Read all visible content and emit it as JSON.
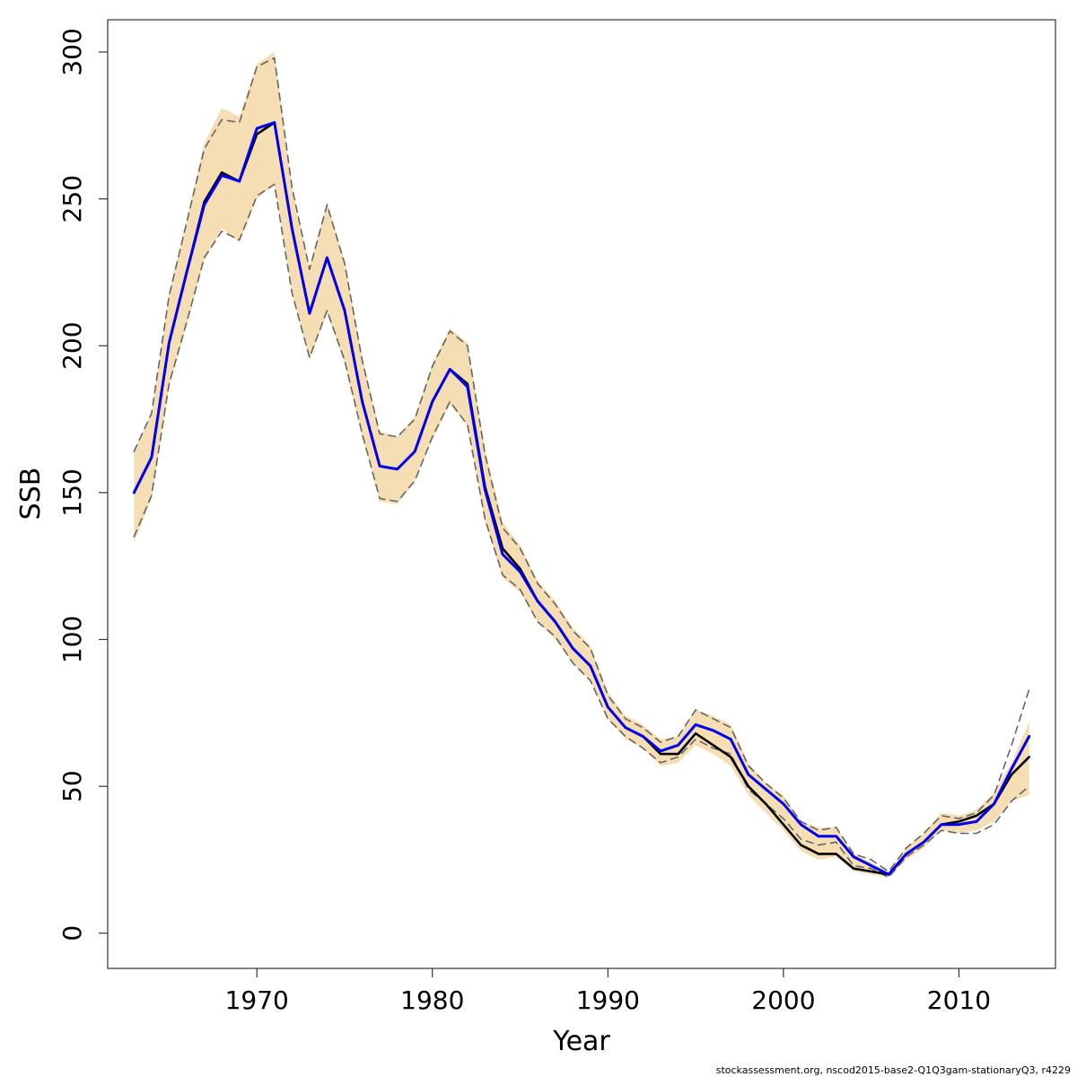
{
  "chart_data": {
    "type": "line",
    "title": "",
    "xlabel": "Year",
    "ylabel": "SSB",
    "xlim": [
      1961.5,
      2015.5
    ],
    "ylim": [
      -12,
      311
    ],
    "x_ticks": [
      1970,
      1980,
      1990,
      2000,
      2010
    ],
    "y_ticks": [
      0,
      50,
      100,
      150,
      200,
      250,
      300
    ],
    "grid": false,
    "legend": "none",
    "x": [
      1963,
      1964,
      1965,
      1966,
      1967,
      1968,
      1969,
      1970,
      1971,
      1972,
      1973,
      1974,
      1975,
      1976,
      1977,
      1978,
      1979,
      1980,
      1981,
      1982,
      1983,
      1984,
      1985,
      1986,
      1987,
      1988,
      1989,
      1990,
      1991,
      1992,
      1993,
      1994,
      1995,
      1996,
      1997,
      1998,
      1999,
      2000,
      2001,
      2002,
      2003,
      2004,
      2005,
      2006,
      2007,
      2008,
      2009,
      2010,
      2011,
      2012,
      2013,
      2014
    ],
    "series": [
      {
        "role": "band",
        "color": "#f5deb3",
        "lower": [
          133,
          148,
          186,
          207,
          229,
          240,
          235,
          250,
          255,
          218,
          195,
          211,
          194,
          169,
          147,
          146,
          154,
          168,
          180,
          173,
          140,
          121,
          116,
          106,
          100,
          92,
          86,
          73,
          66,
          63,
          57,
          58,
          64,
          61,
          57,
          47,
          41,
          35,
          28,
          25,
          26,
          21,
          20,
          19,
          25,
          29,
          35,
          34,
          35,
          38,
          45,
          47
        ],
        "upper": [
          164,
          177,
          218,
          243,
          269,
          281,
          278,
          296,
          300,
          254,
          227,
          249,
          229,
          196,
          171,
          169,
          176,
          194,
          206,
          201,
          165,
          140,
          132,
          120,
          113,
          104,
          98,
          82,
          74,
          71,
          66,
          67,
          76,
          74,
          71,
          58,
          51,
          47,
          38,
          36,
          36,
          27,
          24,
          21,
          29,
          34,
          41,
          40,
          42,
          48,
          58,
          72
        ]
      },
      {
        "role": "upper-dashed",
        "color": "#666666",
        "values": [
          164,
          177,
          217,
          242,
          267,
          277,
          276,
          295,
          298,
          254,
          226,
          248,
          228,
          195,
          170,
          169,
          175,
          193,
          205,
          200,
          163,
          138,
          131,
          119,
          112,
          103,
          97,
          81,
          73,
          70,
          65,
          67,
          76,
          73,
          70,
          57,
          51,
          46,
          38,
          35,
          36,
          27,
          25,
          21,
          29,
          34,
          40,
          39,
          41,
          47,
          64,
          83
        ]
      },
      {
        "role": "lower-dashed",
        "color": "#666666",
        "values": [
          135,
          149,
          187,
          208,
          230,
          239,
          236,
          251,
          255,
          218,
          196,
          212,
          195,
          170,
          148,
          147,
          154,
          169,
          181,
          173,
          141,
          122,
          117,
          106,
          101,
          92,
          86,
          73,
          67,
          63,
          58,
          60,
          66,
          63,
          61,
          49,
          44,
          39,
          32,
          30,
          31,
          23,
          22,
          19,
          26,
          30,
          35,
          34,
          34,
          37,
          45,
          50
        ]
      },
      {
        "role": "black-line",
        "color": "#000000",
        "values": [
          150,
          162,
          201,
          225,
          249,
          259,
          256,
          272,
          276,
          240,
          211,
          230,
          212,
          181,
          159,
          158,
          164,
          181,
          192,
          187,
          152,
          131,
          124,
          113,
          106,
          97,
          91,
          77,
          70,
          67,
          61,
          61,
          68,
          64,
          60,
          50,
          44,
          37,
          30,
          27,
          27,
          22,
          21,
          20,
          27,
          31,
          37,
          38,
          40,
          44,
          54,
          60
        ]
      },
      {
        "role": "blue-line",
        "color": "#0000ee",
        "values": [
          150,
          162,
          201,
          225,
          248,
          258,
          256,
          274,
          276,
          240,
          211,
          230,
          212,
          181,
          159,
          158,
          164,
          181,
          192,
          186,
          151,
          129,
          123,
          113,
          106,
          97,
          91,
          77,
          70,
          67,
          62,
          64,
          71,
          69,
          66,
          54,
          49,
          44,
          37,
          33,
          33,
          26,
          23,
          20,
          27,
          31,
          37,
          37,
          38,
          44,
          56,
          67
        ]
      }
    ]
  },
  "footer": "stockassessment.org, nscod2015-base2-Q1Q3gam-stationaryQ3, r4229"
}
